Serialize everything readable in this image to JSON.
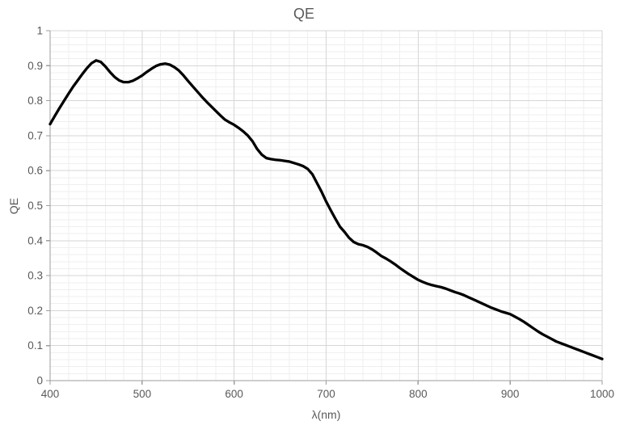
{
  "chart_data": {
    "type": "line",
    "title": "QE",
    "xlabel": "λ(nm)",
    "ylabel": "QE",
    "grid": true,
    "legend": "none",
    "x_axis": {
      "min": 400,
      "max": 1000,
      "major_step": 100,
      "minor_step": 20,
      "ticks": [
        400,
        500,
        600,
        700,
        800,
        900,
        1000
      ],
      "tick_labels": [
        "400",
        "500",
        "600",
        "700",
        "800",
        "900",
        "1000"
      ]
    },
    "y_axis": {
      "min": 0,
      "max": 1,
      "major_step": 0.1,
      "minor_step": 0.02,
      "ticks": [
        0,
        0.1,
        0.2,
        0.3,
        0.4,
        0.5,
        0.6,
        0.7,
        0.8,
        0.9,
        1
      ],
      "tick_labels": [
        "0",
        "0.1",
        "0.2",
        "0.3",
        "0.4",
        "0.5",
        "0.6",
        "0.7",
        "0.8",
        "0.9",
        "1"
      ]
    },
    "series": [
      {
        "name": "QE",
        "color": "#000000",
        "line_width": 3.3,
        "x": [
          400,
          405,
          410,
          415,
          420,
          425,
          430,
          435,
          440,
          445,
          450,
          455,
          460,
          465,
          470,
          475,
          480,
          485,
          490,
          495,
          500,
          505,
          510,
          515,
          520,
          525,
          530,
          535,
          540,
          545,
          550,
          555,
          560,
          565,
          570,
          575,
          580,
          585,
          590,
          595,
          600,
          605,
          610,
          615,
          620,
          625,
          630,
          635,
          640,
          645,
          650,
          655,
          660,
          665,
          670,
          675,
          680,
          685,
          690,
          695,
          700,
          705,
          710,
          715,
          720,
          725,
          730,
          735,
          740,
          745,
          750,
          755,
          760,
          765,
          770,
          775,
          780,
          785,
          790,
          795,
          800,
          805,
          810,
          815,
          820,
          825,
          830,
          835,
          840,
          845,
          850,
          855,
          860,
          865,
          870,
          875,
          880,
          885,
          890,
          895,
          900,
          905,
          910,
          915,
          920,
          925,
          930,
          935,
          940,
          945,
          950,
          955,
          960,
          965,
          970,
          975,
          980,
          985,
          990,
          995,
          1000
        ],
        "y": [
          0.733,
          0.756,
          0.778,
          0.799,
          0.82,
          0.84,
          0.858,
          0.876,
          0.893,
          0.907,
          0.915,
          0.911,
          0.898,
          0.882,
          0.868,
          0.858,
          0.853,
          0.853,
          0.857,
          0.864,
          0.872,
          0.882,
          0.891,
          0.899,
          0.904,
          0.906,
          0.903,
          0.896,
          0.886,
          0.872,
          0.856,
          0.841,
          0.826,
          0.811,
          0.797,
          0.784,
          0.771,
          0.758,
          0.746,
          0.738,
          0.731,
          0.722,
          0.712,
          0.7,
          0.684,
          0.662,
          0.646,
          0.636,
          0.633,
          0.631,
          0.63,
          0.628,
          0.626,
          0.622,
          0.618,
          0.613,
          0.605,
          0.59,
          0.565,
          0.54,
          0.512,
          0.487,
          0.463,
          0.44,
          0.425,
          0.408,
          0.396,
          0.39,
          0.387,
          0.382,
          0.375,
          0.366,
          0.356,
          0.349,
          0.341,
          0.332,
          0.322,
          0.313,
          0.304,
          0.296,
          0.288,
          0.282,
          0.277,
          0.273,
          0.27,
          0.267,
          0.263,
          0.258,
          0.253,
          0.249,
          0.244,
          0.238,
          0.232,
          0.226,
          0.22,
          0.214,
          0.208,
          0.203,
          0.198,
          0.194,
          0.19,
          0.183,
          0.176,
          0.168,
          0.159,
          0.15,
          0.141,
          0.133,
          0.126,
          0.119,
          0.112,
          0.107,
          0.102,
          0.097,
          0.092,
          0.087,
          0.082,
          0.077,
          0.072,
          0.067,
          0.062
        ]
      }
    ],
    "colors": {
      "background": "#ffffff",
      "title_text": "#595959",
      "tick_label_text": "#595959",
      "axis_line": "#9e9e9e",
      "major_grid": "#d6d6d6",
      "minor_grid": "#efefef"
    }
  }
}
